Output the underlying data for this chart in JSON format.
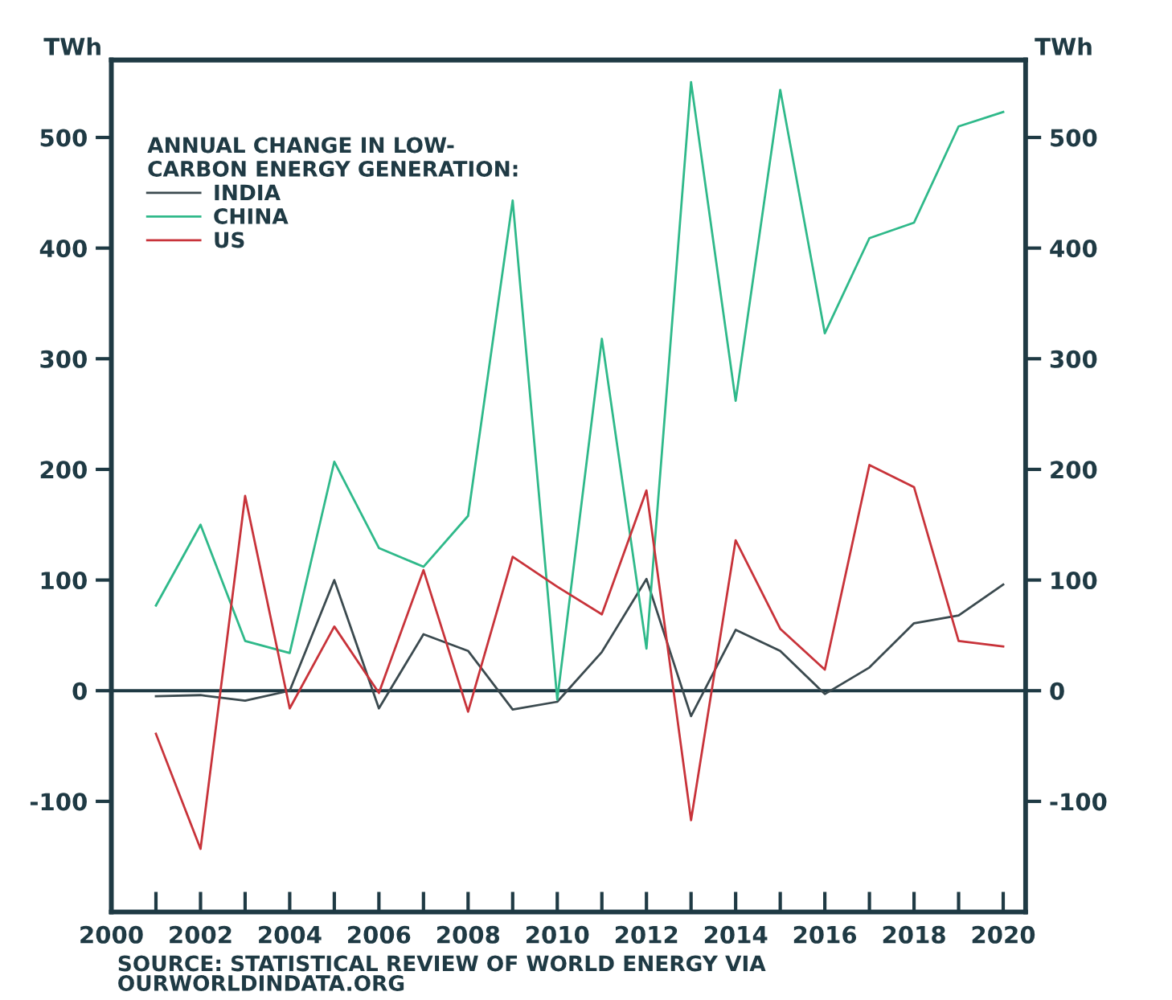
{
  "chart_data": {
    "type": "line",
    "ylabel": "TWh",
    "y2label": "TWh",
    "legend_title": "ANNUAL CHANGE IN LOW-\nCARBON ENERGY GENERATION:",
    "x": [
      2001,
      2002,
      2003,
      2004,
      2005,
      2006,
      2007,
      2008,
      2009,
      2010,
      2011,
      2012,
      2013,
      2014,
      2015,
      2016,
      2017,
      2018,
      2019,
      2020
    ],
    "series": [
      {
        "name": "INDIA",
        "color": "#3b4a4f",
        "values": [
          -5,
          -4,
          -9,
          0,
          100,
          -16,
          51,
          36,
          -17,
          -10,
          35,
          101,
          -23,
          55,
          36,
          -3,
          21,
          61,
          68,
          96
        ]
      },
      {
        "name": "CHINA",
        "color": "#2fb98a",
        "values": [
          77,
          150,
          45,
          34,
          207,
          129,
          112,
          158,
          443,
          -8,
          318,
          38,
          550,
          262,
          543,
          323,
          409,
          423,
          510,
          523
        ]
      },
      {
        "name": "US",
        "color": "#c8333a",
        "values": [
          -39,
          -143,
          176,
          -16,
          58,
          -2,
          109,
          -19,
          121,
          94,
          69,
          181,
          -117,
          136,
          56,
          19,
          204,
          184,
          45,
          40
        ]
      }
    ],
    "xlim": [
      2000,
      2020.5
    ],
    "xticks": [
      2000,
      {
        "value": 2001,
        "label": null
      },
      2002,
      {
        "value": 2003,
        "label": null
      },
      2004,
      {
        "value": 2005,
        "label": null
      },
      2006,
      {
        "value": 2007,
        "label": null
      },
      2008,
      {
        "value": 2009,
        "label": null
      },
      2010,
      {
        "value": 2011,
        "label": null
      },
      2012,
      {
        "value": 2013,
        "label": null
      },
      2014,
      {
        "value": 2015,
        "label": null
      },
      2016,
      {
        "value": 2017,
        "label": null
      },
      2018,
      {
        "value": 2019,
        "label": null
      },
      2020
    ],
    "ylim": [
      -200,
      570
    ],
    "yticks": [
      -100,
      0,
      100,
      200,
      300,
      400,
      500
    ],
    "y2lim": [
      -200,
      570
    ],
    "y2ticks": [
      -100,
      0,
      100,
      200,
      300,
      400,
      500
    ],
    "ref_lines": [
      {
        "axis": "y",
        "value": 0,
        "color": "#1f3a44"
      }
    ],
    "legend": "top left",
    "grid": false,
    "marker": "none",
    "line_style": "solid",
    "annotations": [
      "SOURCE: STATISTICAL REVIEW OF WORLD ENERGY VIA\nOURWORLDINDATA.ORG"
    ]
  }
}
